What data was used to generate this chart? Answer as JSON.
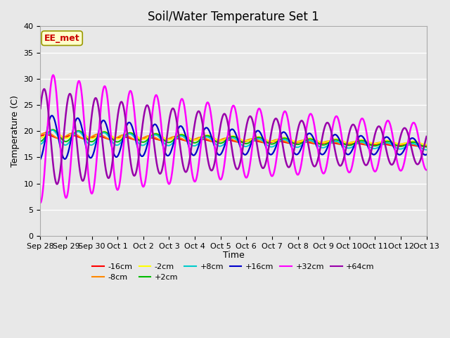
{
  "title": "Soil/Water Temperature Set 1",
  "xlabel": "Time",
  "ylabel": "Temperature (C)",
  "ylim": [
    0,
    40
  ],
  "background_color": "#e8e8e8",
  "fig_bg_color": "#e8e8e8",
  "legend_labels": [
    "-16cm",
    "-8cm",
    "-2cm",
    "+2cm",
    "+8cm",
    "+16cm",
    "+32cm",
    "+64cm"
  ],
  "legend_colors": [
    "#ff0000",
    "#ff8800",
    "#ffff00",
    "#00bb00",
    "#00cccc",
    "#0000cc",
    "#ff00ff",
    "#9900aa"
  ],
  "annotation_text": "EE_met",
  "annotation_bg": "#ffffcc",
  "annotation_border": "#999900",
  "annotation_text_color": "#cc0000",
  "tick_labels": [
    "Sep 28",
    "Sep 29",
    "Sep 30",
    "Oct 1",
    "Oct 2",
    "Oct 3",
    "Oct 4",
    "Oct 5",
    "Oct 6",
    "Oct 7",
    "Oct 8",
    "Oct 9",
    "Oct 10",
    "Oct 11",
    "Oct 12",
    "Oct 13"
  ],
  "title_fontsize": 12,
  "label_fontsize": 9,
  "tick_fontsize": 8
}
